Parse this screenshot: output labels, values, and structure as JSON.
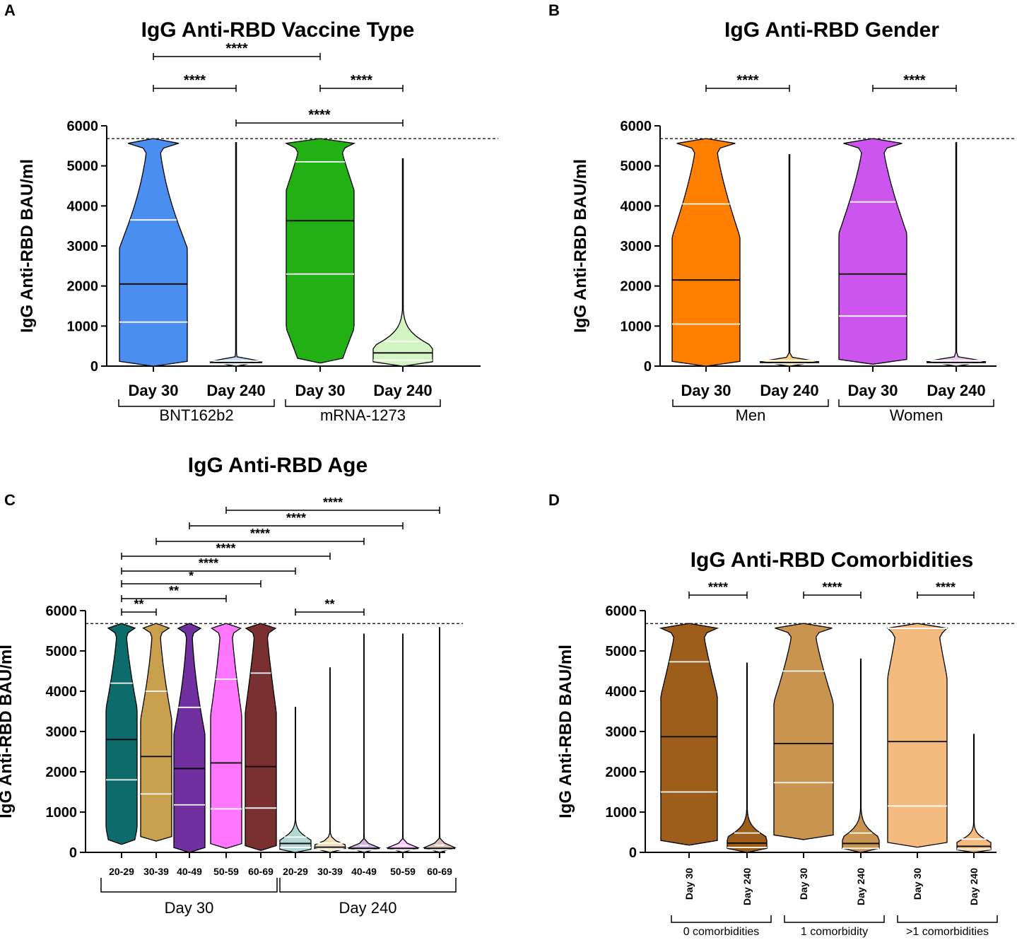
{
  "chart_data": [
    {
      "panel": "A",
      "type": "violin",
      "title": "IgG Anti-RBD Vaccine Type",
      "ylabel": "IgG Anti-RBD BAU/ml",
      "ylim": [
        0,
        6000
      ],
      "yticks": [
        "0",
        "1000",
        "2000",
        "3000",
        "4000",
        "5000",
        "6000"
      ],
      "reference_line": 5680,
      "categories": [
        "Day 30",
        "Day 240",
        "Day 30",
        "Day 240"
      ],
      "groups": [
        "BNT162b2",
        "mRNA-1273"
      ],
      "series": [
        {
          "group": "BNT162b2",
          "label": "Day 30",
          "color": "#4a8ef0",
          "min": 0,
          "max": 5680,
          "q1": 1100,
          "median": 2050,
          "q3": 3650
        },
        {
          "group": "BNT162b2",
          "label": "Day 240",
          "color": "#c6dcf8",
          "min": 0,
          "max": 5580,
          "q1": 60,
          "median": 90,
          "q3": 130
        },
        {
          "group": "mRNA-1273",
          "label": "Day 30",
          "color": "#22b014",
          "min": 80,
          "max": 5680,
          "q1": 2300,
          "median": 3630,
          "q3": 5100
        },
        {
          "group": "mRNA-1273",
          "label": "Day 240",
          "color": "#d2f5c2",
          "min": 0,
          "max": 5180,
          "q1": 150,
          "median": 330,
          "q3": 620
        }
      ],
      "significance": [
        {
          "from": 1,
          "to": 3,
          "label": "****"
        },
        {
          "from": 1,
          "to": 2,
          "label": "****"
        },
        {
          "from": 3,
          "to": 4,
          "label": "****"
        },
        {
          "from": 2,
          "to": 4,
          "label": "****"
        }
      ]
    },
    {
      "panel": "B",
      "type": "violin",
      "title": "IgG Anti-RBD Gender",
      "ylabel": "IgG Anti-RBD BAU/ml",
      "ylim": [
        0,
        6000
      ],
      "yticks": [
        "0",
        "1000",
        "2000",
        "3000",
        "4000",
        "5000",
        "6000"
      ],
      "reference_line": 5680,
      "categories": [
        "Day 30",
        "Day 240",
        "Day 30",
        "Day 240"
      ],
      "groups": [
        "Men",
        "Women"
      ],
      "series": [
        {
          "group": "Men",
          "label": "Day 30",
          "color": "#ff7f00",
          "min": 0,
          "max": 5680,
          "q1": 1050,
          "median": 2150,
          "q3": 4050
        },
        {
          "group": "Men",
          "label": "Day 240",
          "color": "#ffd17a",
          "min": 0,
          "max": 5280,
          "q1": 60,
          "median": 90,
          "q3": 140
        },
        {
          "group": "Women",
          "label": "Day 30",
          "color": "#cc55ee",
          "min": 50,
          "max": 5680,
          "q1": 1250,
          "median": 2300,
          "q3": 4100
        },
        {
          "group": "Women",
          "label": "Day 240",
          "color": "#efc4f7",
          "min": 0,
          "max": 5580,
          "q1": 60,
          "median": 90,
          "q3": 140
        }
      ],
      "significance": [
        {
          "from": 1,
          "to": 2,
          "label": "****"
        },
        {
          "from": 3,
          "to": 4,
          "label": "****"
        }
      ]
    },
    {
      "panel": "C",
      "type": "violin",
      "title": "IgG Anti-RBD Age",
      "ylabel": "IgG Anti-RBD BAU/ml",
      "ylim": [
        0,
        6000
      ],
      "yticks": [
        "0",
        "1000",
        "2000",
        "3000",
        "4000",
        "5000",
        "6000"
      ],
      "reference_line": 5680,
      "categories": [
        "20-29",
        "30-39",
        "40-49",
        "50-59",
        "60-69",
        "20-29",
        "30-39",
        "40-49",
        "50-59",
        "60-69"
      ],
      "groups": [
        "Day 30",
        "Day 240"
      ],
      "series": [
        {
          "group": "Day 30",
          "label": "20-29",
          "color": "#0e6b6b",
          "min": 200,
          "max": 5680,
          "q1": 1800,
          "median": 2800,
          "q3": 4200
        },
        {
          "group": "Day 30",
          "label": "30-39",
          "color": "#c9a04d",
          "min": 280,
          "max": 5680,
          "q1": 1450,
          "median": 2380,
          "q3": 4000
        },
        {
          "group": "Day 30",
          "label": "40-49",
          "color": "#7030a0",
          "min": 0,
          "max": 5680,
          "q1": 1180,
          "median": 2080,
          "q3": 3600
        },
        {
          "group": "Day 30",
          "label": "50-59",
          "color": "#ff77ff",
          "min": 100,
          "max": 5680,
          "q1": 1080,
          "median": 2220,
          "q3": 4300
        },
        {
          "group": "Day 30",
          "label": "60-69",
          "color": "#7a3030",
          "min": 50,
          "max": 5680,
          "q1": 1100,
          "median": 2130,
          "q3": 4450
        },
        {
          "group": "Day 240",
          "label": "20-29",
          "color": "#b2d8d3",
          "min": 0,
          "max": 3600,
          "q1": 120,
          "median": 220,
          "q3": 380
        },
        {
          "group": "Day 240",
          "label": "30-39",
          "color": "#f0dfb8",
          "min": 0,
          "max": 4580,
          "q1": 70,
          "median": 130,
          "q3": 230
        },
        {
          "group": "Day 240",
          "label": "40-49",
          "color": "#cdb6e5",
          "min": 0,
          "max": 5420,
          "q1": 60,
          "median": 100,
          "q3": 170
        },
        {
          "group": "Day 240",
          "label": "50-59",
          "color": "#ffc9ff",
          "min": 0,
          "max": 5420,
          "q1": 60,
          "median": 100,
          "q3": 170
        },
        {
          "group": "Day 240",
          "label": "60-69",
          "color": "#dcc0bb",
          "min": 0,
          "max": 5580,
          "q1": 60,
          "median": 100,
          "q3": 180
        }
      ],
      "significance": [
        {
          "from": 4,
          "to": 10,
          "label": "****"
        },
        {
          "from": 3,
          "to": 9,
          "label": "****"
        },
        {
          "from": 2,
          "to": 8,
          "label": "****"
        },
        {
          "from": 1,
          "to": 7,
          "label": "****"
        },
        {
          "from": 1,
          "to": 6,
          "label": "****"
        },
        {
          "from": 1,
          "to": 5,
          "label": "*"
        },
        {
          "from": 1,
          "to": 4,
          "label": "**"
        },
        {
          "from": 1,
          "to": 2,
          "label": "**"
        },
        {
          "from": 6,
          "to": 8,
          "label": "**"
        }
      ]
    },
    {
      "panel": "D",
      "type": "violin",
      "title": "IgG Anti-RBD Comorbidities",
      "ylabel": "IgG Anti-RBD BAU/ml",
      "ylim": [
        0,
        6000
      ],
      "yticks": [
        "0",
        "1000",
        "2000",
        "3000",
        "4000",
        "5000",
        "6000"
      ],
      "reference_line": 5680,
      "categories": [
        "Day 30",
        "Day 240",
        "Day 30",
        "Day 240",
        "Day 30",
        "Day 240"
      ],
      "groups": [
        "0 comorbidities",
        "1 comorbidity",
        ">1 comorbidities"
      ],
      "series": [
        {
          "group": "0 comorbidities",
          "label": "Day 30",
          "color": "#9c5e1a",
          "min": 180,
          "max": 5680,
          "q1": 1500,
          "median": 2870,
          "q3": 4730
        },
        {
          "group": "0 comorbidities",
          "label": "Day 240",
          "color": "#9c5e1a",
          "min": 0,
          "max": 4700,
          "q1": 120,
          "median": 230,
          "q3": 480
        },
        {
          "group": "1 comorbidity",
          "label": "Day 30",
          "color": "#c9944f",
          "min": 320,
          "max": 5680,
          "q1": 1730,
          "median": 2700,
          "q3": 4500
        },
        {
          "group": "1 comorbidity",
          "label": "Day 240",
          "color": "#c9944f",
          "min": 0,
          "max": 4800,
          "q1": 100,
          "median": 220,
          "q3": 480
        },
        {
          "group": ">1 comorbidities",
          "label": "Day 30",
          "color": "#f5bb7e",
          "min": 130,
          "max": 5680,
          "q1": 1150,
          "median": 2750,
          "q3": 5560
        },
        {
          "group": ">1 comorbidities",
          "label": "Day 240",
          "color": "#f5bb7e",
          "min": 0,
          "max": 2930,
          "q1": 80,
          "median": 150,
          "q3": 330
        }
      ],
      "significance": [
        {
          "from": 1,
          "to": 2,
          "label": "****"
        },
        {
          "from": 3,
          "to": 4,
          "label": "****"
        },
        {
          "from": 5,
          "to": 6,
          "label": "****"
        }
      ]
    }
  ]
}
